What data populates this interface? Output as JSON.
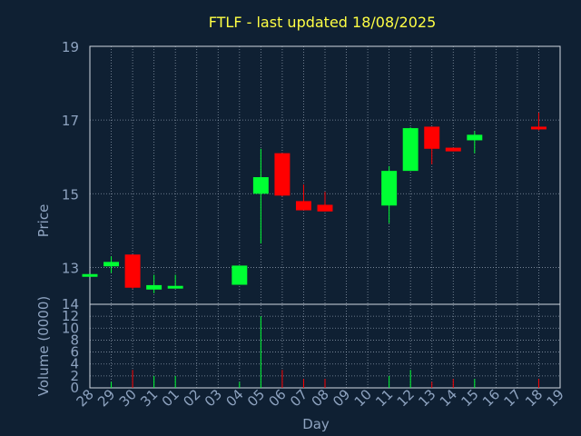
{
  "chart_data": [
    {
      "type": "candlestick",
      "title": "FTLF - last updated 18/08/2025",
      "ylabel": "Price",
      "ylim": [
        12,
        19
      ],
      "yticks": [
        13,
        15,
        17,
        19
      ],
      "grid": true,
      "categories": [
        "28",
        "29",
        "30",
        "31",
        "01",
        "02",
        "03",
        "04",
        "05",
        "06",
        "07",
        "08",
        "09",
        "10",
        "11",
        "12",
        "13",
        "14",
        "15",
        "16",
        "17",
        "18",
        "19"
      ],
      "ohlc": [
        {
          "day": "28",
          "open": 12.82,
          "high": 12.82,
          "low": 12.82,
          "close": 12.82
        },
        {
          "day": "29",
          "open": 13.03,
          "high": 13.3,
          "low": 12.85,
          "close": 13.15
        },
        {
          "day": "30",
          "open": 13.35,
          "high": 13.35,
          "low": 12.42,
          "close": 12.45
        },
        {
          "day": "31",
          "open": 12.4,
          "high": 12.8,
          "low": 12.3,
          "close": 12.52
        },
        {
          "day": "01",
          "open": 12.47,
          "high": 12.8,
          "low": 12.47,
          "close": 12.5
        },
        {
          "day": "04",
          "open": 12.53,
          "high": 13.05,
          "low": 12.53,
          "close": 13.05
        },
        {
          "day": "05",
          "open": 15.0,
          "high": 16.22,
          "low": 13.65,
          "close": 15.45
        },
        {
          "day": "06",
          "open": 16.1,
          "high": 16.1,
          "low": 14.93,
          "close": 14.95
        },
        {
          "day": "07",
          "open": 14.8,
          "high": 15.25,
          "low": 14.55,
          "close": 14.55
        },
        {
          "day": "08",
          "open": 14.7,
          "high": 15.05,
          "low": 14.52,
          "close": 14.52
        },
        {
          "day": "11",
          "open": 14.68,
          "high": 15.75,
          "low": 14.2,
          "close": 15.62
        },
        {
          "day": "12",
          "open": 15.62,
          "high": 16.8,
          "low": 15.62,
          "close": 16.78
        },
        {
          "day": "13",
          "open": 16.82,
          "high": 16.82,
          "low": 15.8,
          "close": 16.22
        },
        {
          "day": "14",
          "open": 16.25,
          "high": 16.25,
          "low": 16.15,
          "close": 16.15
        },
        {
          "day": "15",
          "open": 16.45,
          "high": 16.7,
          "low": 16.1,
          "close": 16.6
        },
        {
          "day": "18",
          "open": 16.82,
          "high": 17.2,
          "low": 16.72,
          "close": 16.75
        }
      ]
    },
    {
      "type": "bar",
      "ylabel": "Volume (0000)",
      "ylim": [
        0,
        14
      ],
      "yticks": [
        0,
        2,
        4,
        6,
        8,
        10,
        12,
        14
      ],
      "xlabel": "Day",
      "grid": true,
      "categories": [
        "28",
        "29",
        "30",
        "31",
        "01",
        "02",
        "03",
        "04",
        "05",
        "06",
        "07",
        "08",
        "09",
        "10",
        "11",
        "12",
        "13",
        "14",
        "15",
        "16",
        "17",
        "18",
        "19"
      ],
      "volumes": [
        {
          "day": "29",
          "value": 1.0,
          "direction": "up"
        },
        {
          "day": "30",
          "value": 3.0,
          "direction": "down"
        },
        {
          "day": "31",
          "value": 2.0,
          "direction": "up"
        },
        {
          "day": "01",
          "value": 2.0,
          "direction": "up"
        },
        {
          "day": "04",
          "value": 1.0,
          "direction": "up"
        },
        {
          "day": "05",
          "value": 12.0,
          "direction": "up"
        },
        {
          "day": "06",
          "value": 3.0,
          "direction": "down"
        },
        {
          "day": "07",
          "value": 1.5,
          "direction": "down"
        },
        {
          "day": "08",
          "value": 1.5,
          "direction": "down"
        },
        {
          "day": "11",
          "value": 2.0,
          "direction": "up"
        },
        {
          "day": "12",
          "value": 3.0,
          "direction": "up"
        },
        {
          "day": "13",
          "value": 1.0,
          "direction": "down"
        },
        {
          "day": "14",
          "value": 1.5,
          "direction": "down"
        },
        {
          "day": "15",
          "value": 1.5,
          "direction": "up"
        },
        {
          "day": "18",
          "value": 1.5,
          "direction": "down"
        }
      ]
    }
  ],
  "colors": {
    "background": "#0f2033",
    "title": "#ffff44",
    "axis_text": "#8ea3c0",
    "up": "#00ff33",
    "down": "#ff0000",
    "grid": "#b8c4d4",
    "frame": "#d0d8e2"
  }
}
